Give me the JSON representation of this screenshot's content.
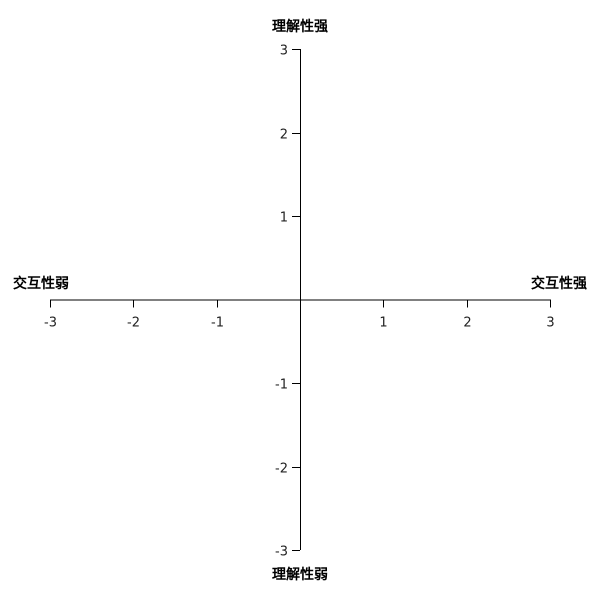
{
  "chart_data": {
    "type": "scatter",
    "title": "",
    "x_axis": {
      "range": [
        -3,
        3
      ],
      "ticks": [
        -3,
        -2,
        -1,
        1,
        2,
        3
      ],
      "tick_labels": [
        "-3",
        "-2",
        "-1",
        "1",
        "2",
        "3"
      ],
      "negative_label": "交互性弱",
      "positive_label": "交互性强"
    },
    "y_axis": {
      "range": [
        -3,
        3
      ],
      "ticks": [
        3,
        2,
        1,
        -1,
        -2,
        -3
      ],
      "tick_labels": [
        "3",
        "2",
        "1",
        "-1",
        "-2",
        "-3"
      ],
      "negative_label": "理解性弱",
      "positive_label": "理解性强"
    },
    "points": [],
    "grid": false,
    "legend": "none"
  }
}
